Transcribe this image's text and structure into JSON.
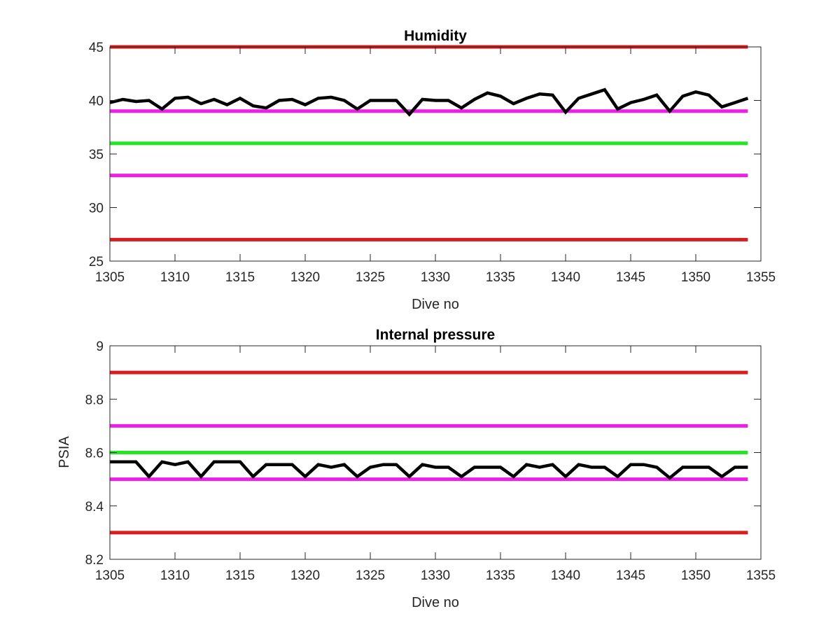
{
  "figure": {
    "background": "#ffffff",
    "frame_color": "#262626"
  },
  "chart_data": [
    {
      "type": "line",
      "title": "Humidity",
      "xlabel": "Dive no",
      "ylabel": "",
      "xlim": [
        1305,
        1355
      ],
      "ylim": [
        25,
        45
      ],
      "xticks": [
        1305,
        1310,
        1315,
        1320,
        1325,
        1330,
        1335,
        1340,
        1345,
        1350,
        1355
      ],
      "xtick_labels": [
        "1305",
        "1310",
        "1315",
        "1320",
        "1325",
        "1330",
        "1335",
        "1340",
        "1345",
        "1350",
        "1355"
      ],
      "yticks": [
        25,
        30,
        35,
        40,
        45
      ],
      "ytick_labels": [
        "25",
        "30",
        "35",
        "40",
        "45"
      ],
      "grid": false,
      "reference_lines": [
        {
          "y": 45,
          "color": "#d91c1c"
        },
        {
          "y": 39,
          "color": "#ee1ee8"
        },
        {
          "y": 36,
          "color": "#22e822"
        },
        {
          "y": 33,
          "color": "#ee1ee8"
        },
        {
          "y": 27,
          "color": "#d91c1c"
        }
      ],
      "series": [
        {
          "color": "#000000",
          "x": [
            1305,
            1306,
            1307,
            1308,
            1309,
            1310,
            1311,
            1312,
            1313,
            1314,
            1315,
            1316,
            1317,
            1318,
            1319,
            1320,
            1321,
            1322,
            1323,
            1324,
            1325,
            1326,
            1327,
            1328,
            1329,
            1330,
            1331,
            1332,
            1333,
            1334,
            1335,
            1336,
            1337,
            1338,
            1339,
            1340,
            1341,
            1342,
            1343,
            1344,
            1345,
            1346,
            1347,
            1348,
            1349,
            1350,
            1351,
            1352,
            1353,
            1354
          ],
          "y": [
            39.8,
            40.1,
            39.9,
            40.0,
            39.2,
            40.2,
            40.3,
            39.7,
            40.1,
            39.6,
            40.2,
            39.5,
            39.3,
            40.0,
            40.1,
            39.6,
            40.2,
            40.3,
            40.0,
            39.2,
            40.0,
            40.0,
            40.0,
            38.7,
            40.1,
            40.0,
            40.0,
            39.3,
            40.1,
            40.7,
            40.4,
            39.7,
            40.2,
            40.6,
            40.5,
            38.9,
            40.2,
            40.6,
            41.0,
            39.2,
            39.8,
            40.1,
            40.5,
            39.0,
            40.4,
            40.8,
            40.5,
            39.4,
            39.8,
            40.2
          ]
        }
      ]
    },
    {
      "type": "line",
      "title": "Internal pressure",
      "xlabel": "Dive no",
      "ylabel": "PSIA",
      "xlim": [
        1305,
        1355
      ],
      "ylim": [
        8.2,
        9.0
      ],
      "xticks": [
        1305,
        1310,
        1315,
        1320,
        1325,
        1330,
        1335,
        1340,
        1345,
        1350,
        1355
      ],
      "xtick_labels": [
        "1305",
        "1310",
        "1315",
        "1320",
        "1325",
        "1330",
        "1335",
        "1340",
        "1345",
        "1350",
        "1355"
      ],
      "yticks": [
        8.2,
        8.4,
        8.6,
        8.8,
        9.0
      ],
      "ytick_labels": [
        "8.2",
        "8.4",
        "8.6",
        "8.8",
        "9"
      ],
      "grid": false,
      "reference_lines": [
        {
          "y": 8.9,
          "color": "#d91c1c"
        },
        {
          "y": 8.7,
          "color": "#ee1ee8"
        },
        {
          "y": 8.6,
          "color": "#22e822"
        },
        {
          "y": 8.5,
          "color": "#ee1ee8"
        },
        {
          "y": 8.3,
          "color": "#d91c1c"
        }
      ],
      "series": [
        {
          "color": "#000000",
          "x": [
            1305,
            1306,
            1307,
            1308,
            1309,
            1310,
            1311,
            1312,
            1313,
            1314,
            1315,
            1316,
            1317,
            1318,
            1319,
            1320,
            1321,
            1322,
            1323,
            1324,
            1325,
            1326,
            1327,
            1328,
            1329,
            1330,
            1331,
            1332,
            1333,
            1334,
            1335,
            1336,
            1337,
            1338,
            1339,
            1340,
            1341,
            1342,
            1343,
            1344,
            1345,
            1346,
            1347,
            1348,
            1349,
            1350,
            1351,
            1352,
            1353,
            1354
          ],
          "y": [
            8.565,
            8.565,
            8.565,
            8.51,
            8.565,
            8.555,
            8.565,
            8.51,
            8.565,
            8.565,
            8.565,
            8.51,
            8.555,
            8.555,
            8.555,
            8.51,
            8.555,
            8.545,
            8.555,
            8.51,
            8.545,
            8.555,
            8.555,
            8.51,
            8.555,
            8.545,
            8.545,
            8.51,
            8.545,
            8.545,
            8.545,
            8.51,
            8.555,
            8.545,
            8.555,
            8.51,
            8.555,
            8.545,
            8.545,
            8.51,
            8.555,
            8.555,
            8.545,
            8.505,
            8.545,
            8.545,
            8.545,
            8.51,
            8.545,
            8.545
          ]
        }
      ]
    }
  ]
}
